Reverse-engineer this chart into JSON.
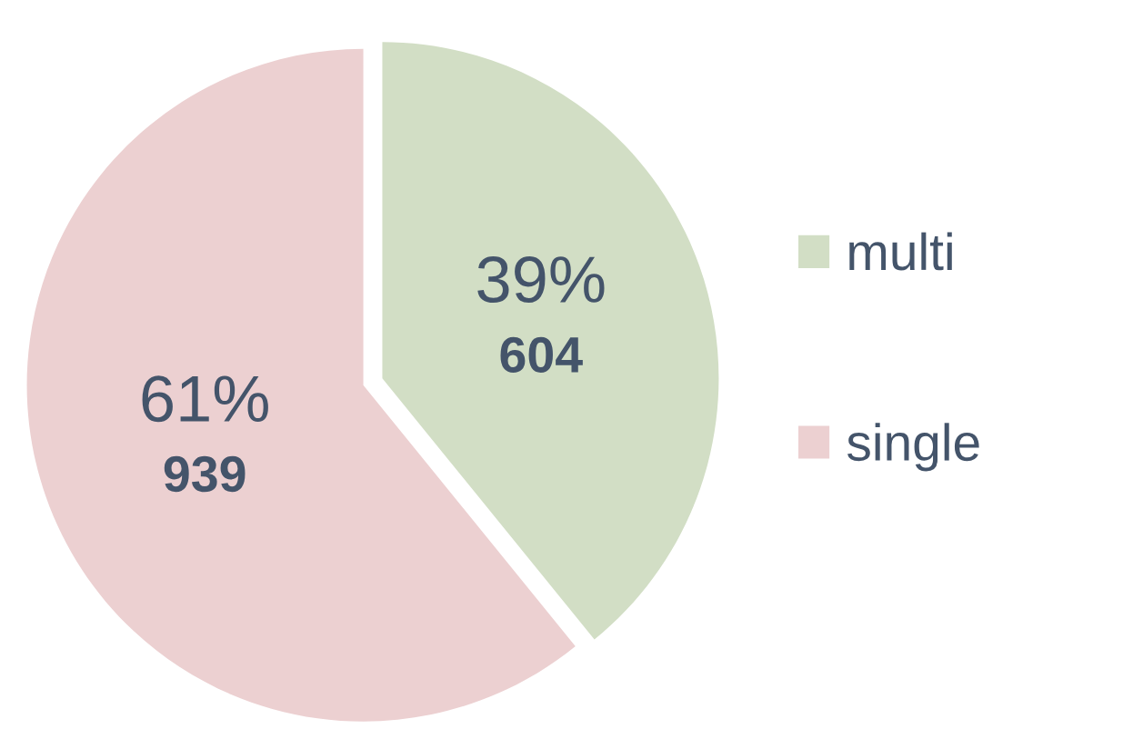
{
  "chart_data": {
    "type": "pie",
    "categories": [
      "multi",
      "single"
    ],
    "values": [
      604,
      939
    ],
    "colors": [
      "#d2dec5",
      "#ecd0d1"
    ],
    "value_labels": [
      "39%\n604",
      "61%\n939"
    ],
    "legend": "right"
  }
}
